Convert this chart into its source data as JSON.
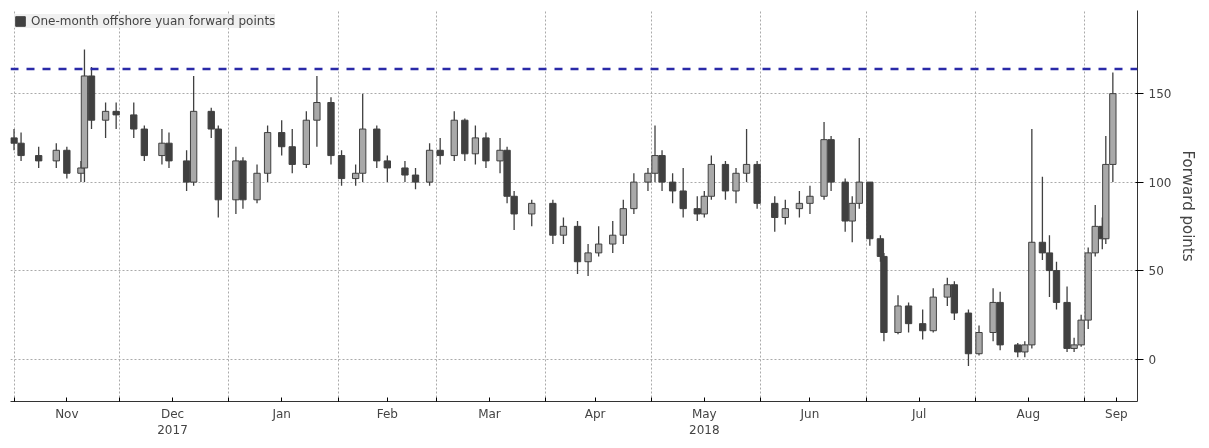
{
  "chart_data": {
    "type": "candlestick",
    "x": [
      "2017-11-01",
      "2017-11-03",
      "2017-11-08",
      "2017-11-13",
      "2017-11-16",
      "2017-11-20",
      "2017-11-21",
      "2017-11-23",
      "2017-11-27",
      "2017-11-30",
      "2017-12-05",
      "2017-12-08",
      "2017-12-13",
      "2017-12-15",
      "2017-12-20",
      "2017-12-22",
      "2017-12-27",
      "2017-12-29",
      "2018-01-03",
      "2018-01-05",
      "2018-01-09",
      "2018-01-12",
      "2018-01-16",
      "2018-01-19",
      "2018-01-23",
      "2018-01-26",
      "2018-01-30",
      "2018-02-02",
      "2018-02-06",
      "2018-02-08",
      "2018-02-12",
      "2018-02-15",
      "2018-02-20",
      "2018-02-23",
      "2018-02-27",
      "2018-03-02",
      "2018-03-06",
      "2018-03-09",
      "2018-03-12",
      "2018-03-15",
      "2018-03-19",
      "2018-03-21",
      "2018-03-23",
      "2018-03-28",
      "2018-04-03",
      "2018-04-06",
      "2018-04-10",
      "2018-04-13",
      "2018-04-16",
      "2018-04-20",
      "2018-04-23",
      "2018-04-26",
      "2018-04-30",
      "2018-05-02",
      "2018-05-04",
      "2018-05-07",
      "2018-05-10",
      "2018-05-14",
      "2018-05-16",
      "2018-05-18",
      "2018-05-22",
      "2018-05-25",
      "2018-05-28",
      "2018-05-31",
      "2018-06-05",
      "2018-06-08",
      "2018-06-12",
      "2018-06-15",
      "2018-06-19",
      "2018-06-21",
      "2018-06-25",
      "2018-06-27",
      "2018-06-29",
      "2018-07-02",
      "2018-07-05",
      "2018-07-06",
      "2018-07-10",
      "2018-07-13",
      "2018-07-17",
      "2018-07-20",
      "2018-07-24",
      "2018-07-26",
      "2018-07-30",
      "2018-08-02",
      "2018-08-06",
      "2018-08-08",
      "2018-08-13",
      "2018-08-15",
      "2018-08-17",
      "2018-08-20",
      "2018-08-22",
      "2018-08-24",
      "2018-08-27",
      "2018-08-29",
      "2018-08-31",
      "2018-09-02",
      "2018-09-04",
      "2018-09-06",
      "2018-09-07",
      "2018-09-09"
    ],
    "series": [
      {
        "name": "One-month offshore yuan forward points",
        "color": "#404040",
        "ohlc": [
          [
            125,
            130,
            118,
            122
          ],
          [
            122,
            128,
            112,
            115
          ],
          [
            115,
            120,
            108,
            112
          ],
          [
            112,
            122,
            108,
            118
          ],
          [
            118,
            120,
            102,
            105
          ],
          [
            105,
            112,
            100,
            108
          ],
          [
            108,
            175,
            100,
            160
          ],
          [
            160,
            165,
            130,
            135
          ],
          [
            135,
            145,
            125,
            140
          ],
          [
            140,
            145,
            130,
            138
          ],
          [
            138,
            145,
            125,
            130
          ],
          [
            130,
            132,
            112,
            115
          ],
          [
            115,
            130,
            110,
            122
          ],
          [
            122,
            128,
            108,
            112
          ],
          [
            112,
            118,
            95,
            100
          ],
          [
            100,
            160,
            98,
            140
          ],
          [
            140,
            142,
            125,
            130
          ],
          [
            130,
            132,
            80,
            90
          ],
          [
            90,
            120,
            82,
            112
          ],
          [
            112,
            114,
            85,
            90
          ],
          [
            90,
            110,
            88,
            105
          ],
          [
            105,
            132,
            100,
            128
          ],
          [
            128,
            135,
            115,
            120
          ],
          [
            120,
            130,
            105,
            110
          ],
          [
            110,
            140,
            108,
            135
          ],
          [
            135,
            160,
            120,
            145
          ],
          [
            145,
            148,
            110,
            115
          ],
          [
            115,
            118,
            98,
            102
          ],
          [
            102,
            110,
            98,
            105
          ],
          [
            105,
            150,
            100,
            130
          ],
          [
            130,
            132,
            108,
            112
          ],
          [
            112,
            115,
            100,
            108
          ],
          [
            108,
            112,
            100,
            104
          ],
          [
            104,
            108,
            96,
            100
          ],
          [
            100,
            122,
            98,
            118
          ],
          [
            118,
            125,
            110,
            115
          ],
          [
            115,
            140,
            112,
            135
          ],
          [
            135,
            136,
            112,
            116
          ],
          [
            116,
            132,
            110,
            125
          ],
          [
            125,
            128,
            108,
            112
          ],
          [
            112,
            125,
            105,
            118
          ],
          [
            118,
            120,
            88,
            92
          ],
          [
            92,
            95,
            73,
            82
          ],
          [
            82,
            90,
            75,
            88
          ],
          [
            88,
            90,
            65,
            70
          ],
          [
            70,
            80,
            65,
            75
          ],
          [
            75,
            78,
            48,
            55
          ],
          [
            55,
            65,
            47,
            60
          ],
          [
            60,
            75,
            58,
            65
          ],
          [
            65,
            78,
            60,
            70
          ],
          [
            70,
            90,
            65,
            85
          ],
          [
            85,
            105,
            82,
            100
          ],
          [
            100,
            108,
            95,
            105
          ],
          [
            105,
            132,
            100,
            115
          ],
          [
            115,
            118,
            95,
            100
          ],
          [
            100,
            105,
            88,
            95
          ],
          [
            95,
            108,
            80,
            85
          ],
          [
            85,
            92,
            78,
            82
          ],
          [
            82,
            95,
            80,
            92
          ],
          [
            92,
            115,
            90,
            110
          ],
          [
            110,
            112,
            90,
            95
          ],
          [
            95,
            108,
            88,
            105
          ],
          [
            105,
            130,
            100,
            110
          ],
          [
            110,
            112,
            85,
            88
          ],
          [
            88,
            92,
            72,
            80
          ],
          [
            80,
            90,
            76,
            85
          ],
          [
            85,
            95,
            80,
            88
          ],
          [
            88,
            98,
            82,
            92
          ],
          [
            92,
            134,
            90,
            124
          ],
          [
            124,
            126,
            95,
            100
          ],
          [
            100,
            102,
            72,
            78
          ],
          [
            78,
            92,
            66,
            88
          ],
          [
            88,
            125,
            85,
            100
          ],
          [
            100,
            100,
            64,
            68
          ],
          [
            68,
            70,
            55,
            58
          ],
          [
            58,
            60,
            10,
            15
          ],
          [
            15,
            36,
            14,
            30
          ],
          [
            30,
            32,
            15,
            20
          ],
          [
            20,
            28,
            11,
            16
          ],
          [
            16,
            40,
            15,
            35
          ],
          [
            35,
            46,
            30,
            42
          ],
          [
            42,
            44,
            22,
            26
          ],
          [
            26,
            28,
            -4,
            3
          ],
          [
            3,
            19,
            2,
            15
          ],
          [
            15,
            40,
            10,
            32
          ],
          [
            32,
            38,
            5,
            8
          ],
          [
            8,
            9,
            1,
            4
          ],
          [
            4,
            10,
            1,
            8
          ],
          [
            8,
            130,
            6,
            66
          ],
          [
            66,
            103,
            56,
            60
          ],
          [
            60,
            70,
            35,
            50
          ],
          [
            50,
            55,
            28,
            32
          ],
          [
            32,
            41,
            4,
            6
          ],
          [
            6,
            12,
            4,
            8
          ],
          [
            8,
            25,
            7,
            22
          ],
          [
            22,
            63,
            17,
            60
          ],
          [
            60,
            87,
            58,
            75
          ],
          [
            75,
            80,
            62,
            68
          ],
          [
            68,
            126,
            65,
            110
          ],
          [
            110,
            162,
            100,
            150
          ]
        ]
      }
    ],
    "xlim": [
      "2017-10-31",
      "2018-09-16"
    ],
    "xticks": [
      {
        "value": "2017-11-01",
        "label": null
      },
      {
        "value": "2017-12-01",
        "label": null
      },
      {
        "value": "2018-01-01",
        "label": null
      },
      {
        "value": "2018-02-01",
        "label": null
      },
      {
        "value": "2018-03-01",
        "label": null
      },
      {
        "value": "2018-04-01",
        "label": null
      },
      {
        "value": "2018-05-01",
        "label": null
      },
      {
        "value": "2018-06-01",
        "label": null
      },
      {
        "value": "2018-07-01",
        "label": null
      },
      {
        "value": "2018-08-01",
        "label": null
      },
      {
        "value": "2018-09-01",
        "label": null
      },
      {
        "value": "2017-11-16",
        "label": "Nov"
      },
      {
        "value": "2017-12-16",
        "label": "Dec\n2017"
      },
      {
        "value": "2018-01-16",
        "label": "Jan"
      },
      {
        "value": "2018-02-15",
        "label": "Feb"
      },
      {
        "value": "2018-03-16",
        "label": "Mar"
      },
      {
        "value": "2018-04-15",
        "label": "Apr"
      },
      {
        "value": "2018-05-16",
        "label": "May\n2018"
      },
      {
        "value": "2018-06-15",
        "label": "Jun"
      },
      {
        "value": "2018-07-16",
        "label": "Jul"
      },
      {
        "value": "2018-08-16",
        "label": "Aug"
      },
      {
        "value": "2018-09-10",
        "label": "Sep"
      }
    ],
    "ylim": [
      -24,
      197
    ],
    "yticks": [
      0,
      50,
      100,
      150
    ],
    "ylabel": "Forward points",
    "ref_lines": [
      {
        "axis": "y",
        "value": 164,
        "label": null,
        "color": "#2a2aa8",
        "line_style": "dashed"
      }
    ],
    "grid": true,
    "legend": "top left"
  }
}
